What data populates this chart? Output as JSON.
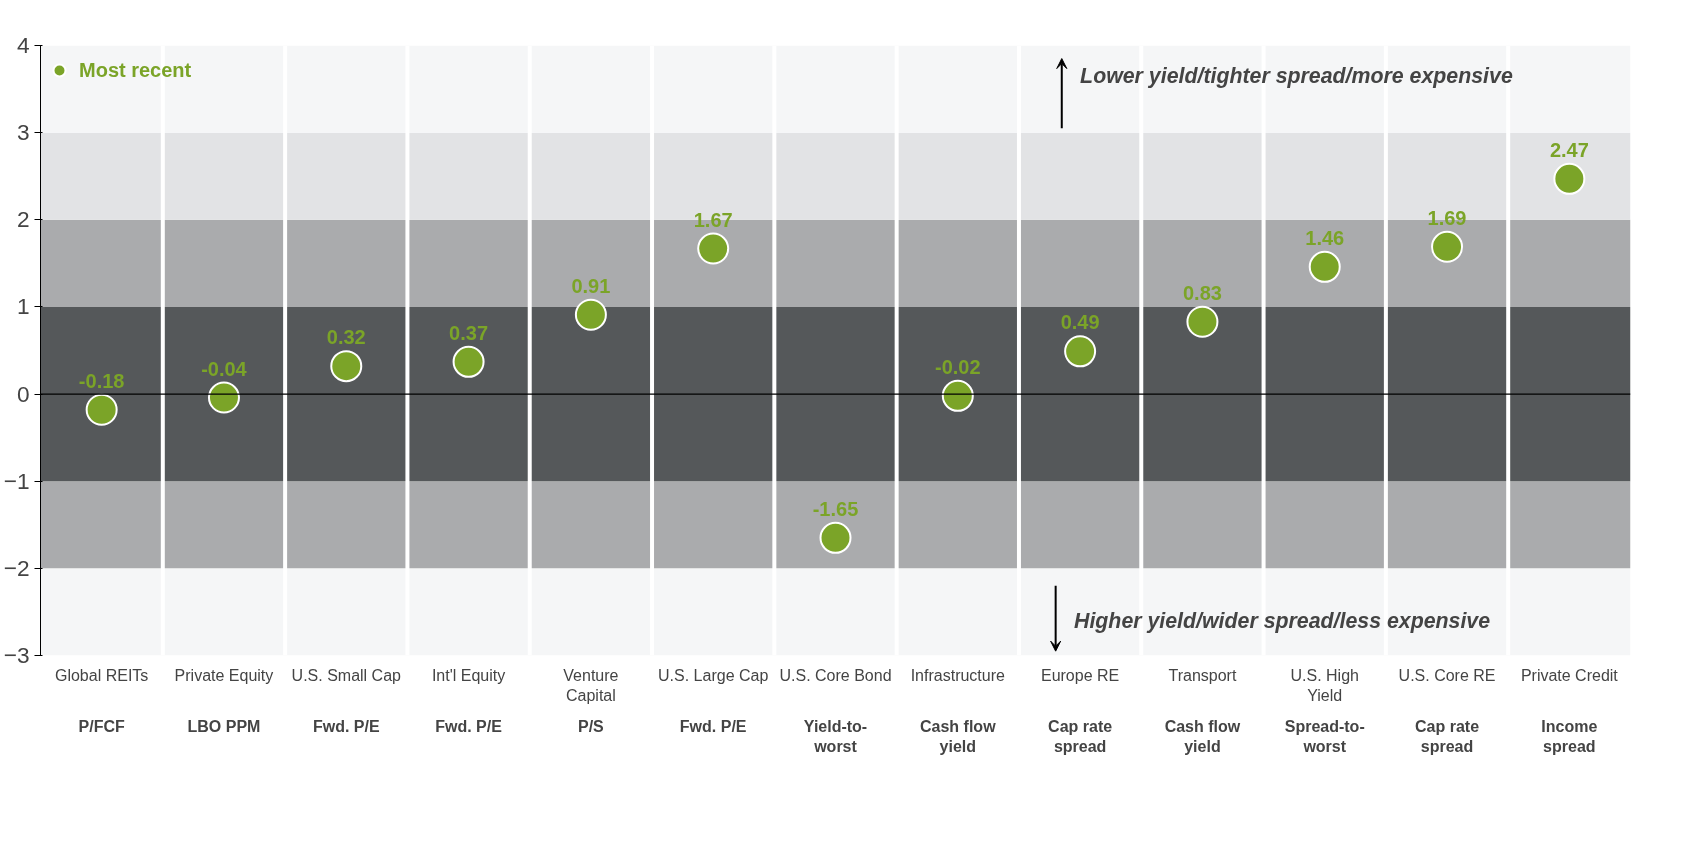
{
  "chart_data": {
    "type": "scatter",
    "categories": [
      "Global REITs",
      "Private Equity",
      "U.S. Small Cap",
      "Int'l Equity",
      "Venture Capital",
      "U.S. Large Cap",
      "U.S. Core Bond",
      "Infrastructure",
      "Europe RE",
      "Transport",
      "U.S. High Yield",
      "U.S. Core RE",
      "Private Credit"
    ],
    "series": [
      {
        "name": "Most recent",
        "color": "#7ba428",
        "values": [
          -0.18,
          -0.04,
          0.32,
          0.37,
          0.91,
          1.67,
          -1.65,
          -0.02,
          0.49,
          0.83,
          1.46,
          1.69,
          2.47
        ]
      }
    ],
    "ylim": [
      -3,
      4
    ],
    "yticks": [
      -3,
      -2,
      -1,
      0,
      1,
      2,
      3,
      4
    ],
    "bands": [
      {
        "axis": "y",
        "from": -3,
        "to": -2,
        "color": "#f5f6f7"
      },
      {
        "axis": "y",
        "from": -2,
        "to": -1,
        "color": "#aaabad"
      },
      {
        "axis": "y",
        "from": -1,
        "to": 1,
        "color": "#55585a"
      },
      {
        "axis": "y",
        "from": 1,
        "to": 2,
        "color": "#aaabad"
      },
      {
        "axis": "y",
        "from": 2,
        "to": 3,
        "color": "#e2e3e5"
      },
      {
        "axis": "y",
        "from": 3,
        "to": 4,
        "color": "#f5f6f7"
      }
    ],
    "ref_lines": [
      {
        "axis": "y",
        "value": 0,
        "color": "#000000",
        "line_style": "solid"
      }
    ],
    "annotations": [
      "P/FCF",
      "LBO PPM",
      "Fwd. P/E",
      "Fwd. P/E",
      "P/S",
      "Fwd. P/E",
      "Yield-to-worst",
      "Cash flow yield",
      "Cap rate spread",
      "Cash flow yield",
      "Spread-to-worst",
      "Cap rate spread",
      "Income spread",
      "Lower yield/tighter spread/more expensive",
      "Higher yield/wider spread/less expensive"
    ],
    "data_labels": true,
    "marker": "circle",
    "legend": "top left"
  }
}
